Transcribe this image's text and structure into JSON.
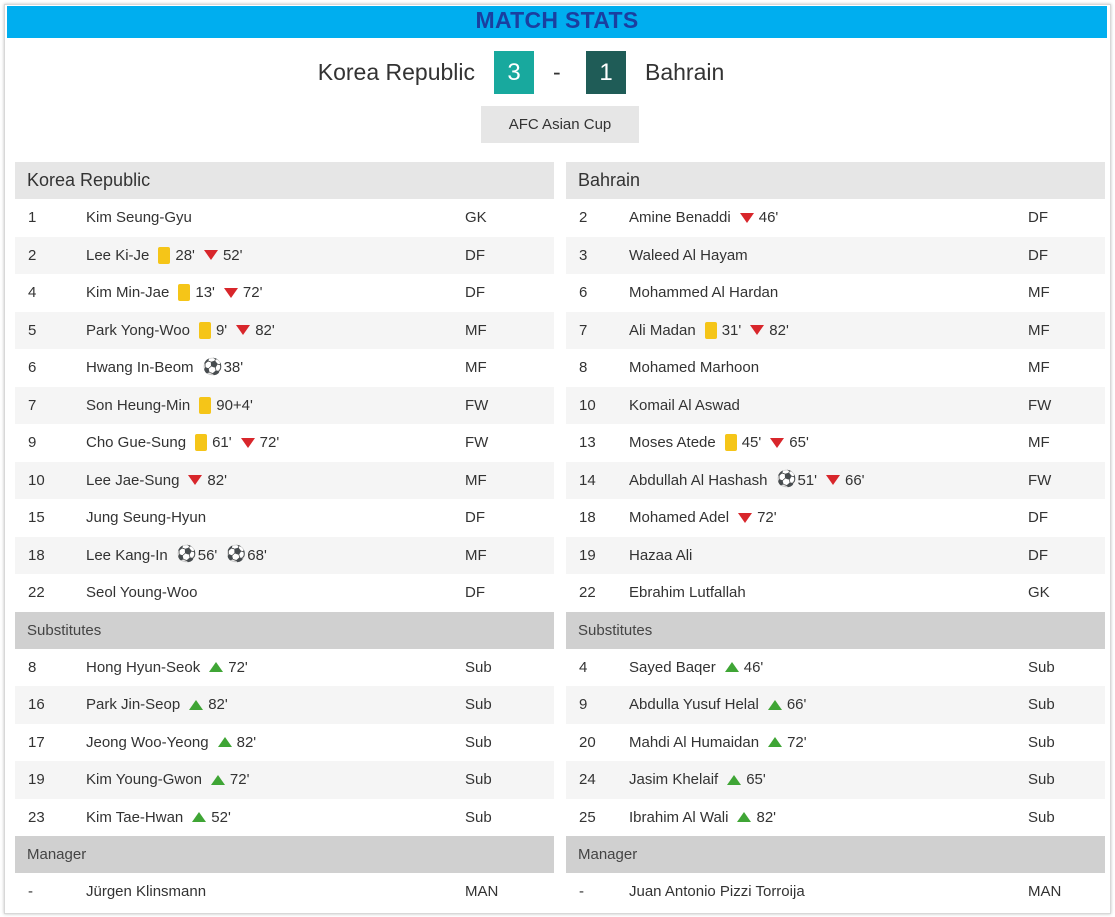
{
  "header": {
    "title": "MATCH STATS"
  },
  "match": {
    "home_team": "Korea Republic",
    "home_score": "3",
    "separator": "-",
    "away_score": "1",
    "away_team": "Bahrain",
    "competition": "AFC Asian Cup"
  },
  "colors": {
    "banner": "#00aeef",
    "title": "#1a3fa0",
    "home_score_bg": "#18a99e",
    "away_score_bg": "#1f5c57",
    "yellow_card": "#f5c518",
    "sub_off": "#d8262b",
    "sub_on": "#3fa535"
  },
  "labels": {
    "substitutes": "Substitutes",
    "manager": "Manager"
  },
  "home": {
    "team": "Korea Republic",
    "starters": [
      {
        "num": "1",
        "name": "Kim Seung-Gyu",
        "pos": "GK",
        "events": []
      },
      {
        "num": "2",
        "name": "Lee Ki-Je",
        "pos": "DF",
        "events": [
          {
            "type": "yellow",
            "time": "28'"
          },
          {
            "type": "off",
            "time": "52'"
          }
        ]
      },
      {
        "num": "4",
        "name": "Kim Min-Jae",
        "pos": "DF",
        "events": [
          {
            "type": "yellow",
            "time": "13'"
          },
          {
            "type": "off",
            "time": "72'"
          }
        ]
      },
      {
        "num": "5",
        "name": "Park Yong-Woo",
        "pos": "MF",
        "events": [
          {
            "type": "yellow",
            "time": "9'"
          },
          {
            "type": "off",
            "time": "82'"
          }
        ]
      },
      {
        "num": "6",
        "name": "Hwang In-Beom",
        "pos": "MF",
        "events": [
          {
            "type": "goal",
            "time": "38'"
          }
        ]
      },
      {
        "num": "7",
        "name": "Son Heung-Min",
        "pos": "FW",
        "events": [
          {
            "type": "yellow",
            "time": "90+4'"
          }
        ]
      },
      {
        "num": "9",
        "name": "Cho Gue-Sung",
        "pos": "FW",
        "events": [
          {
            "type": "yellow",
            "time": "61'"
          },
          {
            "type": "off",
            "time": "72'"
          }
        ]
      },
      {
        "num": "10",
        "name": "Lee Jae-Sung",
        "pos": "MF",
        "events": [
          {
            "type": "off",
            "time": "82'"
          }
        ]
      },
      {
        "num": "15",
        "name": "Jung Seung-Hyun",
        "pos": "DF",
        "events": []
      },
      {
        "num": "18",
        "name": "Lee Kang-In",
        "pos": "MF",
        "events": [
          {
            "type": "goal",
            "time": "56'"
          },
          {
            "type": "goal",
            "time": "68'"
          }
        ]
      },
      {
        "num": "22",
        "name": "Seol Young-Woo",
        "pos": "DF",
        "events": []
      }
    ],
    "subs": [
      {
        "num": "8",
        "name": "Hong Hyun-Seok",
        "pos": "Sub",
        "events": [
          {
            "type": "on",
            "time": "72'"
          }
        ]
      },
      {
        "num": "16",
        "name": "Park Jin-Seop",
        "pos": "Sub",
        "events": [
          {
            "type": "on",
            "time": "82'"
          }
        ]
      },
      {
        "num": "17",
        "name": "Jeong Woo-Yeong",
        "pos": "Sub",
        "events": [
          {
            "type": "on",
            "time": "82'"
          }
        ]
      },
      {
        "num": "19",
        "name": "Kim Young-Gwon",
        "pos": "Sub",
        "events": [
          {
            "type": "on",
            "time": "72'"
          }
        ]
      },
      {
        "num": "23",
        "name": "Kim Tae-Hwan",
        "pos": "Sub",
        "events": [
          {
            "type": "on",
            "time": "52'"
          }
        ]
      }
    ],
    "manager": {
      "num": "-",
      "name": "Jürgen Klinsmann",
      "pos": "MAN",
      "events": []
    }
  },
  "away": {
    "team": "Bahrain",
    "starters": [
      {
        "num": "2",
        "name": "Amine Benaddi",
        "pos": "DF",
        "events": [
          {
            "type": "off",
            "time": "46'"
          }
        ]
      },
      {
        "num": "3",
        "name": "Waleed Al Hayam",
        "pos": "DF",
        "events": []
      },
      {
        "num": "6",
        "name": "Mohammed Al Hardan",
        "pos": "MF",
        "events": []
      },
      {
        "num": "7",
        "name": "Ali Madan",
        "pos": "MF",
        "events": [
          {
            "type": "yellow",
            "time": "31'"
          },
          {
            "type": "off",
            "time": "82'"
          }
        ]
      },
      {
        "num": "8",
        "name": "Mohamed Marhoon",
        "pos": "MF",
        "events": []
      },
      {
        "num": "10",
        "name": "Komail Al Aswad",
        "pos": "FW",
        "events": []
      },
      {
        "num": "13",
        "name": "Moses Atede",
        "pos": "MF",
        "events": [
          {
            "type": "yellow",
            "time": "45'"
          },
          {
            "type": "off",
            "time": "65'"
          }
        ]
      },
      {
        "num": "14",
        "name": "Abdullah Al Hashash",
        "pos": "FW",
        "events": [
          {
            "type": "goal",
            "time": "51'"
          },
          {
            "type": "off",
            "time": "66'"
          }
        ]
      },
      {
        "num": "18",
        "name": "Mohamed Adel",
        "pos": "DF",
        "events": [
          {
            "type": "off",
            "time": "72'"
          }
        ]
      },
      {
        "num": "19",
        "name": "Hazaa Ali",
        "pos": "DF",
        "events": []
      },
      {
        "num": "22",
        "name": "Ebrahim Lutfallah",
        "pos": "GK",
        "events": []
      }
    ],
    "subs": [
      {
        "num": "4",
        "name": "Sayed Baqer",
        "pos": "Sub",
        "events": [
          {
            "type": "on",
            "time": "46'"
          }
        ]
      },
      {
        "num": "9",
        "name": "Abdulla Yusuf Helal",
        "pos": "Sub",
        "events": [
          {
            "type": "on",
            "time": "66'"
          }
        ]
      },
      {
        "num": "20",
        "name": "Mahdi Al Humaidan",
        "pos": "Sub",
        "events": [
          {
            "type": "on",
            "time": "72'"
          }
        ]
      },
      {
        "num": "24",
        "name": "Jasim Khelaif",
        "pos": "Sub",
        "events": [
          {
            "type": "on",
            "time": "65'"
          }
        ]
      },
      {
        "num": "25",
        "name": "Ibrahim Al Wali",
        "pos": "Sub",
        "events": [
          {
            "type": "on",
            "time": "82'"
          }
        ]
      }
    ],
    "manager": {
      "num": "-",
      "name": "Juan Antonio Pizzi Torroija",
      "pos": "MAN",
      "events": []
    }
  }
}
